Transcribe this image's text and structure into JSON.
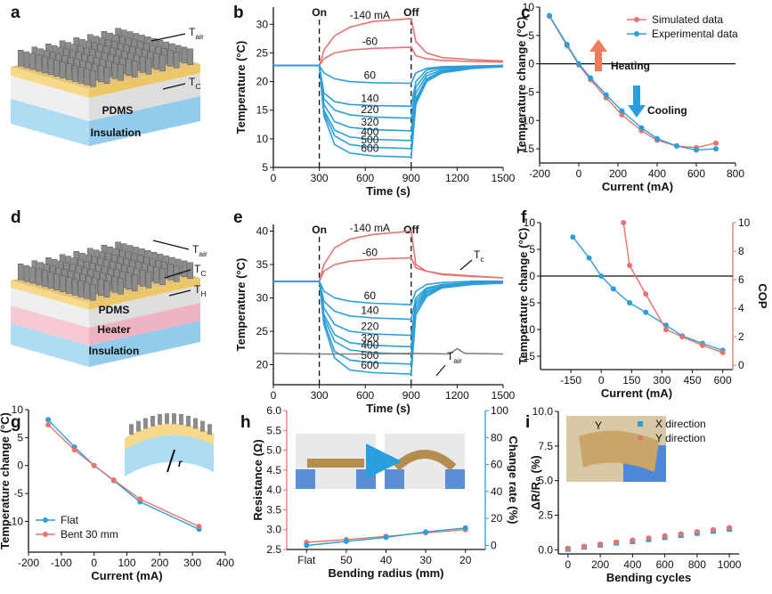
{
  "panels": [
    "a",
    "b",
    "c",
    "d",
    "e",
    "f",
    "g",
    "h",
    "i"
  ],
  "diagrams": [
    {
      "labels": [
        {
          "text": "T",
          "sub": "air"
        },
        {
          "text": "T",
          "sub": "C"
        },
        {
          "text": "PDMS"
        },
        {
          "text": "Insulation"
        }
      ]
    },
    {
      "labels": [
        {
          "text": "T",
          "sub": "air"
        },
        {
          "text": "T",
          "sub": "C"
        },
        {
          "text": "T",
          "sub": "H"
        },
        {
          "text": "PDMS"
        },
        {
          "text": "Heater"
        },
        {
          "text": "Insulation"
        }
      ]
    },
    {
      "labels": [
        {
          "text": "r"
        }
      ]
    },
    {
      "labels": [
        {
          "text": "Y"
        }
      ]
    }
  ],
  "chart_data": [
    {
      "type": "line",
      "xlabel": "Time (s)",
      "ylabel": "Temperature (°C)",
      "xlim": [
        0,
        1500
      ],
      "xticks": [
        0,
        300,
        600,
        900,
        1200,
        1500
      ],
      "ylim": [
        5,
        33
      ],
      "yticks": [
        5,
        10,
        15,
        20,
        25,
        30
      ],
      "x": [
        0,
        300,
        330,
        400,
        500,
        650,
        900,
        930,
        1000,
        1100,
        1300,
        1500
      ],
      "annotations": [
        {
          "text": "On",
          "x": 300
        },
        {
          "text": "Off",
          "x": 900
        }
      ],
      "series": [
        {
          "name": "-140 mA",
          "color": "#e8736f",
          "values": [
            22.8,
            22.8,
            25.5,
            28,
            29.5,
            30.5,
            31,
            27,
            25,
            24.2,
            23.8,
            23.6
          ]
        },
        {
          "name": "-60",
          "color": "#e8736f",
          "values": [
            22.8,
            22.8,
            24,
            25,
            25.5,
            25.8,
            26,
            24.5,
            24,
            23.7,
            23.5,
            23.4
          ]
        },
        {
          "name": "60",
          "color": "#2b9fd9",
          "values": [
            22.8,
            22.8,
            21.5,
            20.5,
            20,
            19.8,
            19.7,
            21.5,
            22.3,
            22.6,
            22.7,
            22.8
          ]
        },
        {
          "name": "140",
          "color": "#2b9fd9",
          "values": [
            22.8,
            22.8,
            18,
            16.5,
            16,
            15.8,
            15.7,
            20,
            22,
            22.5,
            22.7,
            22.8
          ]
        },
        {
          "name": "220",
          "color": "#2b9fd9",
          "values": [
            22.8,
            22.8,
            17,
            15,
            14.2,
            13.8,
            13.6,
            19,
            21.5,
            22.3,
            22.6,
            22.8
          ]
        },
        {
          "name": "320",
          "color": "#2b9fd9",
          "values": [
            22.8,
            22.8,
            16,
            13,
            12,
            11.6,
            11.4,
            18,
            21,
            22,
            22.5,
            22.7
          ]
        },
        {
          "name": "400",
          "color": "#2b9fd9",
          "values": [
            22.8,
            22.8,
            15,
            11.5,
            10.3,
            9.9,
            9.7,
            17,
            20.5,
            21.8,
            22.4,
            22.7
          ]
        },
        {
          "name": "500",
          "color": "#2b9fd9",
          "values": [
            22.8,
            22.8,
            14.5,
            10.5,
            9,
            8.5,
            8.3,
            16.5,
            20.3,
            21.7,
            22.4,
            22.7
          ]
        },
        {
          "name": "600",
          "color": "#2b9fd9",
          "values": [
            22.8,
            22.8,
            14,
            9,
            7.5,
            7,
            6.8,
            16,
            20,
            21.5,
            22.3,
            22.6
          ]
        }
      ]
    },
    {
      "type": "line",
      "markers": true,
      "zero_line": true,
      "legend": "upper right",
      "xlabel": "Current (mA)",
      "ylabel": "Temperature change (°C)",
      "xlim": [
        -200,
        800
      ],
      "xticks": [
        -200,
        0,
        200,
        400,
        600,
        800
      ],
      "ylim": [
        -17.5,
        10
      ],
      "yticks": [
        -15,
        -10,
        -5,
        0,
        5,
        10
      ],
      "x": [
        -150,
        -60,
        0,
        60,
        140,
        220,
        320,
        400,
        500,
        600,
        700
      ],
      "annotations": [
        {
          "text": "Heating",
          "color": "#f07a5c"
        },
        {
          "text": "Cooling",
          "color": "#2a9fe0"
        }
      ],
      "series": [
        {
          "name": "Simulated data",
          "color": "#e8736f",
          "values": [
            8.4,
            3.2,
            -0.2,
            -2.8,
            -6.0,
            -9.0,
            -11.8,
            -13.5,
            -14.5,
            -14.8,
            -14.0
          ]
        },
        {
          "name": "Experimental data",
          "color": "#2b9fd9",
          "values": [
            8.5,
            3.4,
            0,
            -2.5,
            -5.5,
            -8.3,
            -11.3,
            -13.2,
            -14.5,
            -15.2,
            -15.0
          ]
        }
      ]
    },
    {
      "type": "line",
      "xlabel": "Time (s)",
      "ylabel": "Temperature (°C)",
      "xlim": [
        0,
        1500
      ],
      "xticks": [
        0,
        300,
        600,
        900,
        1200,
        1500
      ],
      "ylim": [
        17,
        41
      ],
      "yticks": [
        20,
        25,
        30,
        35,
        40
      ],
      "x": [
        0,
        300,
        330,
        400,
        500,
        650,
        900,
        930,
        1000,
        1100,
        1300,
        1500
      ],
      "annotations": [
        {
          "text": "On",
          "x": 300
        },
        {
          "text": "Off",
          "x": 900
        },
        {
          "text": "T",
          "sub": "c"
        },
        {
          "text": "T",
          "sub": "air"
        }
      ],
      "series": [
        {
          "name": "-140 mA",
          "color": "#e8736f",
          "values": [
            32.5,
            32.5,
            35,
            37.5,
            38.8,
            39.5,
            40,
            35,
            34,
            33.5,
            33.2,
            33
          ]
        },
        {
          "name": "-60",
          "color": "#e8736f",
          "values": [
            32.5,
            32.5,
            34,
            35,
            35.5,
            35.8,
            36,
            34.5,
            34,
            33.6,
            33.3,
            33
          ]
        },
        {
          "name": "60",
          "color": "#2b9fd9",
          "values": [
            32.5,
            32.5,
            31,
            30,
            29.5,
            29.2,
            29,
            31,
            32,
            32.3,
            32.5,
            32.5
          ]
        },
        {
          "name": "140",
          "color": "#2b9fd9",
          "values": [
            32.5,
            32.5,
            29.5,
            28,
            27.3,
            27,
            26.8,
            30,
            31.5,
            32,
            32.3,
            32.5
          ]
        },
        {
          "name": "220",
          "color": "#2b9fd9",
          "values": [
            32.5,
            32.5,
            28.5,
            26,
            25,
            24.6,
            24.4,
            29.5,
            31.3,
            32,
            32.3,
            32.4
          ]
        },
        {
          "name": "320",
          "color": "#2b9fd9",
          "values": [
            32.5,
            32.5,
            27.5,
            24.5,
            23.3,
            22.9,
            22.7,
            29,
            31,
            31.8,
            32.2,
            32.4
          ]
        },
        {
          "name": "400",
          "color": "#2b9fd9",
          "values": [
            32.5,
            32.5,
            27,
            23.5,
            22.2,
            21.8,
            21.6,
            28.5,
            30.8,
            31.7,
            32.2,
            32.4
          ]
        },
        {
          "name": "500",
          "color": "#2b9fd9",
          "values": [
            32.5,
            32.5,
            26.5,
            22,
            20.7,
            20.3,
            20.1,
            28,
            30.5,
            31.6,
            32.1,
            32.3
          ]
        },
        {
          "name": "600",
          "color": "#2b9fd9",
          "values": [
            32.5,
            32.5,
            26,
            21,
            19.2,
            18.8,
            18.6,
            27.5,
            30.2,
            31.5,
            32,
            32.2
          ]
        },
        {
          "color": "#7f7f7f",
          "x": [
            0,
            300,
            600,
            900,
            1150,
            1200,
            1250,
            1500
          ],
          "values": [
            21.7,
            21.6,
            21.6,
            21.7,
            21.6,
            22.4,
            21.7,
            21.6
          ]
        }
      ]
    },
    {
      "type": "line",
      "markers": true,
      "zero_line": true,
      "xlabel": "Current (mA)",
      "ylabel": "Temperature change (°C)",
      "y2label": "COP",
      "y2label_color": "#e8736f",
      "xlim": [
        -300,
        650
      ],
      "xticks": [
        -150,
        0,
        150,
        300,
        450,
        600
      ],
      "ylim": [
        -17.5,
        10
      ],
      "yticks": [
        -15,
        -10,
        -5,
        0,
        5,
        10
      ],
      "y2lim": [
        -0.3,
        10
      ],
      "y2ticks": [
        0,
        2,
        4,
        6,
        8,
        10
      ],
      "series": [
        {
          "color": "#2b9fd9",
          "x": [
            -140,
            -60,
            0,
            60,
            140,
            220,
            320,
            400,
            500,
            600
          ],
          "values": [
            7.3,
            3.4,
            0,
            -2.4,
            -5.0,
            -6.8,
            -9.2,
            -11.2,
            -12.6,
            -13.9
          ]
        },
        {
          "color": "#e8736f",
          "axis": "y2",
          "x": [
            110,
            140,
            220,
            320,
            400,
            500,
            600
          ],
          "values": [
            10,
            7.0,
            5.0,
            2.5,
            2.0,
            1.4,
            0.9
          ]
        }
      ]
    },
    {
      "type": "line",
      "markers": true,
      "legend": "lower left",
      "xlabel": "Current (mA)",
      "ylabel": "Temperature change (°C)",
      "xlim": [
        -200,
        400
      ],
      "xticks": [
        -200,
        -100,
        0,
        100,
        200,
        300,
        400
      ],
      "ylim": [
        -15.5,
        10
      ],
      "yticks": [
        -10,
        -5,
        0,
        5,
        10
      ],
      "x": [
        -140,
        -60,
        0,
        60,
        140,
        320
      ],
      "series": [
        {
          "name": "Flat",
          "color": "#2b9fd9",
          "values": [
            8.2,
            3.3,
            0,
            -2.7,
            -6.5,
            -11.4
          ]
        },
        {
          "name": "Bent 30 mm",
          "color": "#e8736f",
          "values": [
            7.3,
            2.8,
            0,
            -2.6,
            -6.0,
            -10.9
          ]
        }
      ]
    },
    {
      "type": "line",
      "markers": true,
      "xlabel": "Bending radius (mm)",
      "ylabel": "Resistance (Ω)",
      "y2label": "Change rate (%)",
      "ylabel_color": "#e8736f",
      "y2label_color": "#2b9fd9",
      "categories": [
        "Flat",
        "50",
        "40",
        "30",
        "20"
      ],
      "ylim": [
        2.5,
        6.0
      ],
      "yticks": [
        2.5,
        {
          "value": 3,
          "label": "3.0"
        },
        3.5,
        {
          "value": 4,
          "label": "4.0"
        },
        4.5,
        {
          "value": 5,
          "label": "5.0"
        },
        5.5,
        {
          "value": 6,
          "label": "6.0"
        }
      ],
      "y2lim": [
        -3,
        100
      ],
      "y2ticks": [
        0,
        20,
        40,
        60,
        80,
        100
      ],
      "series": [
        {
          "color": "#e8736f",
          "values": [
            2.68,
            2.75,
            2.83,
            2.92,
            3.0
          ]
        },
        {
          "color": "#2b9fd9",
          "axis": "y2",
          "values": [
            0,
            3,
            6,
            10,
            13
          ]
        }
      ]
    },
    {
      "type": "scatter",
      "legend": "upper right",
      "xlabel": "Bending cycles",
      "ylabel": "ΔR/R₀ (%)",
      "xlim": [
        -60,
        1060
      ],
      "xticks": [
        0,
        200,
        400,
        600,
        800,
        1000
      ],
      "ylim": [
        -0.3,
        10
      ],
      "yticks": [
        {
          "value": 0,
          "label": "0.0"
        },
        2.5,
        {
          "value": 5,
          "label": "5.0"
        },
        7.5,
        {
          "value": 10,
          "label": "10.0"
        }
      ],
      "x": [
        0,
        100,
        200,
        300,
        400,
        500,
        600,
        700,
        800,
        900,
        1000
      ],
      "series": [
        {
          "name": "X direction",
          "color": "#2b9fd9",
          "marker": "square",
          "values": [
            0.05,
            0.2,
            0.35,
            0.5,
            0.6,
            0.75,
            0.9,
            1.05,
            1.2,
            1.35,
            1.5
          ]
        },
        {
          "name": "Y direction",
          "color": "#e8736f",
          "marker": "circle",
          "values": [
            0.1,
            0.25,
            0.4,
            0.55,
            0.7,
            0.85,
            1.0,
            1.15,
            1.3,
            1.45,
            1.6
          ]
        }
      ]
    }
  ]
}
